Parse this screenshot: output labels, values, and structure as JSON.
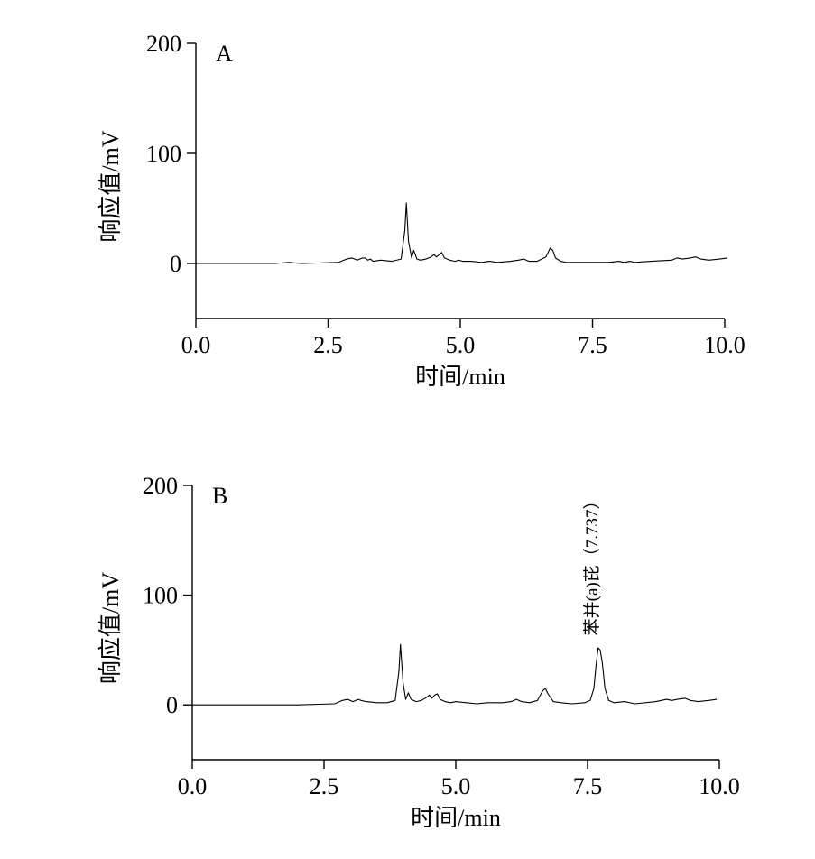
{
  "chart_data": [
    {
      "type": "line",
      "panel_label": "A",
      "xlabel": "时间/min",
      "ylabel": "响应值/mV",
      "xlim": [
        0,
        10
      ],
      "ylim": [
        -50,
        200
      ],
      "xticks": [
        "0.0",
        "2.5",
        "5.0",
        "7.5",
        "10.0"
      ],
      "yticks": [
        "0",
        "100",
        "200"
      ],
      "xtick_values": [
        0,
        2.5,
        5,
        7.5,
        10
      ],
      "ytick_values": [
        0,
        100,
        200
      ],
      "series": [
        {
          "x": [
            0,
            1.5,
            1.75,
            2.0,
            2.7,
            2.85,
            2.95,
            3.05,
            3.15,
            3.2,
            3.25,
            3.3,
            3.35,
            3.5,
            3.7,
            3.88,
            3.95,
            3.98,
            4.02,
            4.08,
            4.12,
            4.18,
            4.25,
            4.35,
            4.45,
            4.5,
            4.55,
            4.6,
            4.65,
            4.7,
            4.8,
            4.9,
            4.97,
            5.05,
            5.2,
            5.4,
            5.55,
            5.7,
            5.95,
            6.1,
            6.2,
            6.3,
            6.45,
            6.62,
            6.7,
            6.75,
            6.8,
            6.9,
            7.0,
            7.3,
            7.8,
            8.0,
            8.1,
            8.2,
            8.3,
            8.6,
            9.0,
            9.1,
            9.2,
            9.35,
            9.45,
            9.55,
            9.7,
            9.9,
            10.05
          ],
          "y": [
            0,
            0,
            1,
            0,
            1,
            4,
            5,
            3,
            5,
            5,
            3,
            4,
            2,
            3,
            2,
            4,
            30,
            55,
            20,
            5,
            12,
            4,
            3,
            4,
            6,
            8,
            6,
            8,
            10,
            5,
            3,
            2,
            3,
            2,
            2,
            1,
            2,
            1,
            2,
            3,
            4,
            2,
            2,
            6,
            14,
            12,
            5,
            2,
            1,
            1,
            1,
            2,
            1,
            2,
            1,
            2,
            3,
            5,
            4,
            5,
            6,
            4,
            3,
            4,
            5
          ]
        }
      ]
    },
    {
      "type": "line",
      "panel_label": "B",
      "xlabel": "时间/min",
      "ylabel": "响应值/mV",
      "xlim": [
        0,
        10
      ],
      "ylim": [
        -50,
        200
      ],
      "xticks": [
        "0.0",
        "2.5",
        "5.0",
        "7.5",
        "10.0"
      ],
      "yticks": [
        "0",
        "100",
        "200"
      ],
      "xtick_values": [
        0,
        2.5,
        5,
        7.5,
        10
      ],
      "ytick_values": [
        0,
        100,
        200
      ],
      "annotation": {
        "text": "苯并(a)芘（7.737）",
        "x": 7.737,
        "y": 55
      },
      "series": [
        {
          "x": [
            0,
            2.0,
            2.7,
            2.85,
            2.95,
            3.05,
            3.15,
            3.2,
            3.3,
            3.5,
            3.7,
            3.85,
            3.92,
            3.95,
            4.0,
            4.05,
            4.1,
            4.15,
            4.25,
            4.35,
            4.45,
            4.5,
            4.55,
            4.6,
            4.65,
            4.7,
            4.8,
            4.9,
            5.0,
            5.2,
            5.4,
            5.6,
            5.9,
            6.05,
            6.15,
            6.25,
            6.4,
            6.55,
            6.65,
            6.7,
            6.75,
            6.85,
            7.0,
            7.2,
            7.45,
            7.55,
            7.62,
            7.66,
            7.7,
            7.74,
            7.78,
            7.83,
            7.9,
            8.0,
            8.2,
            8.4,
            8.8,
            9.0,
            9.1,
            9.2,
            9.35,
            9.45,
            9.6,
            9.8,
            9.95
          ],
          "y": [
            0,
            0,
            1,
            4,
            5,
            3,
            5,
            4,
            3,
            2,
            2,
            4,
            30,
            55,
            20,
            5,
            11,
            5,
            3,
            4,
            7,
            9,
            6,
            9,
            10,
            5,
            3,
            2,
            3,
            2,
            1,
            2,
            2,
            3,
            5,
            3,
            2,
            4,
            13,
            15,
            10,
            3,
            2,
            1,
            2,
            4,
            15,
            35,
            52,
            50,
            38,
            15,
            4,
            2,
            3,
            1,
            3,
            5,
            4,
            5,
            6,
            4,
            3,
            4,
            5
          ]
        }
      ]
    }
  ]
}
